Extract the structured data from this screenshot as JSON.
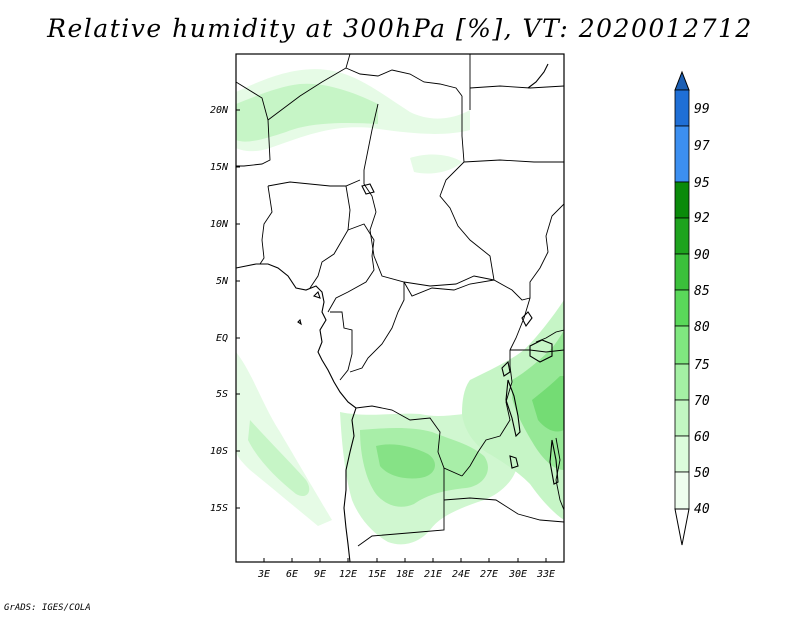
{
  "title": "Relative humidity at 300hPa [%], VT: 2020012712",
  "credit": "GrADS: IGES/COLA",
  "map": {
    "lat_labels": [
      "20N",
      "15N",
      "10N",
      "5N",
      "EQ",
      "5S",
      "10S",
      "15S"
    ],
    "lon_labels": [
      "3E",
      "6E",
      "9E",
      "12E",
      "15E",
      "18E",
      "21E",
      "24E",
      "27E",
      "30E",
      "33E"
    ],
    "lon_range": [
      0,
      35
    ],
    "lat_range": [
      -20,
      25
    ]
  },
  "colorbar": {
    "labels": [
      "99",
      "97",
      "95",
      "92",
      "90",
      "85",
      "80",
      "75",
      "70",
      "60",
      "50",
      "40"
    ],
    "colors": {
      "above_99": "#1c5fb4",
      "97_99": "#1f6fd6",
      "95_97": "#3c8ff0",
      "92_95": "#0a8a0a",
      "90_92": "#1ea31e",
      "85_90": "#3bc03b",
      "80_85": "#5ad85a",
      "75_80": "#80e880",
      "70_75": "#a4f0a4",
      "60_70": "#c2f7c2",
      "50_60": "#dbfcdb",
      "40_50": "#eefdee",
      "below_40": "#ffffff"
    }
  },
  "humidity_colors": {
    "light": "#e6fbe6",
    "lighter": "#d0f7d0",
    "mid": "#aaf0aa",
    "strong": "#80e480",
    "deep": "#5cd65c"
  }
}
